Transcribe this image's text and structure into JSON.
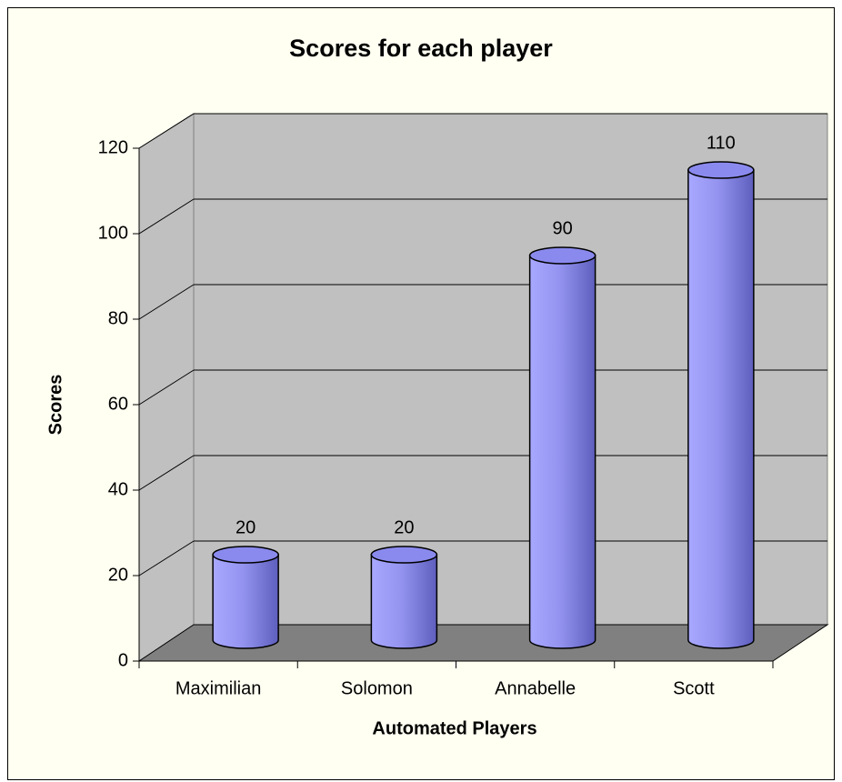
{
  "chart_data": {
    "type": "bar3d",
    "title": "Scores for each player",
    "x_label": "Automated Players",
    "y_label": "Scores",
    "categories": [
      "Maximilian",
      "Solomon",
      "Annabelle",
      "Scott"
    ],
    "values": [
      20,
      20,
      90,
      110
    ],
    "color": "#9999ff",
    "ylim": [
      0,
      120
    ],
    "yticks": [
      0,
      20,
      40,
      60,
      80,
      100,
      120
    ],
    "grid": true
  }
}
